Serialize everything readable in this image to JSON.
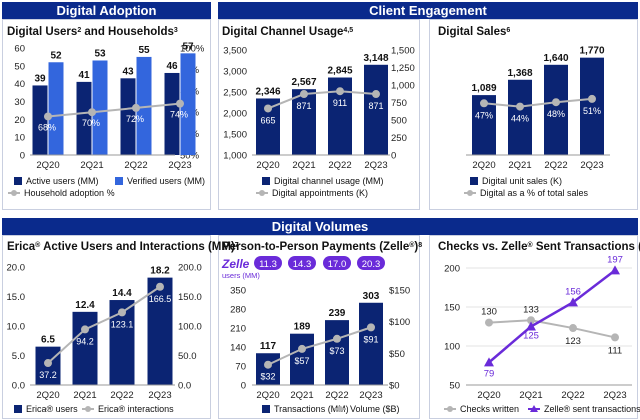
{
  "banners": {
    "digital_adoption": "Digital Adoption",
    "client_engagement": "Client Engagement",
    "digital_volumes": "Digital Volumes"
  },
  "colors": {
    "navy": "#0b2473",
    "blue": "#3366dd",
    "gray": "#b5b5b5",
    "purple": "#6a2bd9",
    "banner": "#0a2a8c"
  },
  "chart_data": [
    {
      "id": "c1",
      "type": "bar",
      "title": "Digital Users",
      "title_sup": "2",
      "title_rest": " and Households",
      "title_sup2": "3",
      "categories": [
        "2Q20",
        "2Q21",
        "2Q22",
        "2Q23"
      ],
      "series": [
        {
          "name": "Active users (MM)",
          "values": [
            39,
            41,
            43,
            46
          ]
        },
        {
          "name": "Verified users (MM)",
          "values": [
            52,
            53,
            55,
            57
          ]
        },
        {
          "name": "Household adoption %",
          "values": [
            68,
            70,
            72,
            74
          ],
          "labels": [
            "68%",
            "70%",
            "72%",
            "74%"
          ]
        }
      ],
      "left_axis": {
        "min": 0,
        "max": 60,
        "ticks": [
          "0",
          "10",
          "20",
          "30",
          "40",
          "50",
          "60"
        ]
      },
      "right_axis": {
        "min": 50,
        "max": 100,
        "ticks": [
          "50%",
          "60%",
          "70%",
          "80%",
          "90%",
          "100%"
        ]
      },
      "legend": [
        "Active users (MM)",
        "Verified users (MM)",
        "Household adoption %"
      ]
    },
    {
      "id": "c2",
      "type": "bar",
      "title": "Digital Channel Usage",
      "title_sup": "4,5",
      "categories": [
        "2Q20",
        "2Q21",
        "2Q22",
        "2Q23"
      ],
      "series": [
        {
          "name": "Digital channel usage (MM)",
          "values": [
            2346,
            2567,
            2845,
            3148
          ],
          "labels": [
            "2,346",
            "2,567",
            "2,845",
            "3,148"
          ]
        },
        {
          "name": "Digital appointments (K)",
          "values": [
            665,
            871,
            911,
            871
          ],
          "labels": [
            "665",
            "871",
            "911",
            "871"
          ]
        }
      ],
      "left_axis": {
        "min": 1000,
        "max": 3500,
        "ticks": [
          "1,000",
          "1,500",
          "2,000",
          "2,500",
          "3,000",
          "3,500"
        ]
      },
      "right_axis": {
        "min": 0,
        "max": 1500,
        "ticks": [
          "0",
          "250",
          "500",
          "750",
          "1,000",
          "1,250",
          "1,500"
        ]
      },
      "legend": [
        "Digital channel usage (MM)",
        "Digital appointments (K)"
      ]
    },
    {
      "id": "c3",
      "type": "bar",
      "title": "Digital Sales",
      "title_sup": "6",
      "categories": [
        "2Q20",
        "2Q21",
        "2Q22",
        "2Q23"
      ],
      "series": [
        {
          "name": "Digital unit sales (K)",
          "values": [
            1089,
            1368,
            1640,
            1770
          ],
          "labels": [
            "1,089",
            "1,368",
            "1,640",
            "1,770"
          ]
        },
        {
          "name": "Digital as a % of total sales",
          "values": [
            47,
            44,
            48,
            51
          ],
          "labels": [
            "47%",
            "44%",
            "48%",
            "51%"
          ]
        }
      ],
      "left_axis": {
        "min": 0,
        "max": 2000
      },
      "right_axis": {
        "min": 0,
        "max": 100
      },
      "legend": [
        "Digital unit sales (K)",
        "Digital as a % of total sales"
      ]
    },
    {
      "id": "c4",
      "type": "bar",
      "title": "Erica",
      "title_reg": "®",
      "title_rest": " Active Users and Interactions (MM)",
      "title_sup": "7",
      "categories": [
        "2Q20",
        "2Q21",
        "2Q22",
        "2Q23"
      ],
      "series": [
        {
          "name": "Erica® users",
          "values": [
            6.5,
            12.4,
            14.4,
            18.2
          ],
          "labels": [
            "6.5",
            "12.4",
            "14.4",
            "18.2"
          ]
        },
        {
          "name": "Erica® interactions",
          "values": [
            37.2,
            94.2,
            123.1,
            166.5
          ],
          "labels": [
            "37.2",
            "94.2",
            "123.1",
            "166.5"
          ]
        }
      ],
      "left_axis": {
        "min": 0,
        "max": 20,
        "ticks": [
          "0.0",
          "5.0",
          "10.0",
          "15.0",
          "20.0"
        ]
      },
      "right_axis": {
        "min": 0,
        "max": 200,
        "ticks": [
          "0.0",
          "50.0",
          "100.0",
          "150.0",
          "200.0"
        ]
      },
      "legend": [
        "Erica® users",
        "Erica® interactions"
      ]
    },
    {
      "id": "c5",
      "type": "bar",
      "title": "Person-to-Person Payments (Zelle",
      "title_reg": "®",
      "title_rest": ")",
      "title_sup": "8",
      "zelle_logo": "Zelle",
      "zelle_sub": "users (MM)",
      "zelle_users": [
        "11.3",
        "14.3",
        "17.0",
        "20.3"
      ],
      "categories": [
        "2Q20",
        "2Q21",
        "2Q22",
        "2Q23"
      ],
      "series": [
        {
          "name": "Transactions (MM)",
          "values": [
            117,
            189,
            239,
            303
          ],
          "labels": [
            "117",
            "189",
            "239",
            "303"
          ]
        },
        {
          "name": "Volume ($B)",
          "values": [
            32,
            57,
            73,
            91
          ],
          "labels": [
            "$32",
            "$57",
            "$73",
            "$91"
          ]
        }
      ],
      "left_axis": {
        "min": 0,
        "max": 350,
        "ticks": [
          "0",
          "70",
          "140",
          "210",
          "280",
          "350"
        ]
      },
      "right_axis": {
        "min": 0,
        "max": 150,
        "ticks": [
          "$0",
          "$50",
          "$100",
          "$150"
        ]
      },
      "legend": [
        "Transactions (MM)",
        "Volume ($B)"
      ]
    },
    {
      "id": "c6",
      "type": "line",
      "title": "Checks vs. Zelle",
      "title_reg": "®",
      "title_rest": " Sent Transactions (MM)",
      "categories": [
        "2Q20",
        "2Q21",
        "2Q22",
        "2Q23"
      ],
      "series": [
        {
          "name": "Checks written",
          "values": [
            130,
            133,
            123,
            111
          ],
          "labels": [
            "130",
            "133",
            "123",
            "111"
          ]
        },
        {
          "name": "Zelle® sent transactions",
          "values": [
            79,
            125,
            156,
            197
          ],
          "labels": [
            "79",
            "125",
            "156",
            "197"
          ]
        }
      ],
      "left_axis": {
        "min": 50,
        "max": 200,
        "ticks": [
          "50",
          "100",
          "150",
          "200"
        ]
      },
      "legend": [
        "Checks written",
        "Zelle® sent transactions"
      ]
    }
  ]
}
